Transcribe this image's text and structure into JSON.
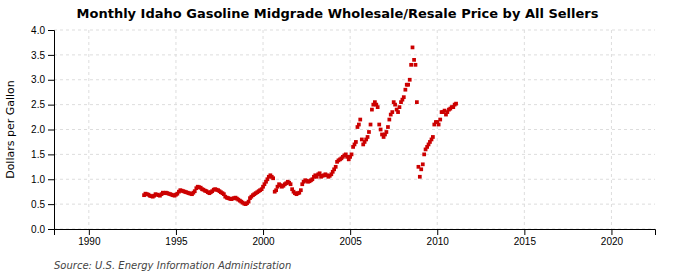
{
  "chart_data": {
    "type": "scatter",
    "title": "Monthly Idaho Gasoline Midgrade Wholesale/Resale Price by All Sellers",
    "ylabel": "Dollars per Gallon",
    "annotations": [
      "Source: U.S. Energy Information Administration"
    ],
    "xlim": [
      1988.0,
      2022.5
    ],
    "ylim": [
      0.0,
      4.0
    ],
    "xticks": [
      1990,
      1995,
      2000,
      2005,
      2010,
      2015,
      2020
    ],
    "yticks": [
      {
        "value": 0.0,
        "label": "0.0"
      },
      0.5,
      {
        "value": 1.0,
        "label": "1.0"
      },
      1.5,
      {
        "value": 2.0,
        "label": "2.0"
      },
      2.5,
      {
        "value": 3.0,
        "label": "3.0"
      },
      3.5,
      {
        "value": 4.0,
        "label": "4.0"
      }
    ],
    "grid": true,
    "color": "#cc0000",
    "marker": "square",
    "x": [
      1993.17,
      1993.25,
      1993.33,
      1993.42,
      1993.5,
      1993.58,
      1993.67,
      1993.75,
      1993.83,
      1993.92,
      1994.0,
      1994.08,
      1994.17,
      1994.25,
      1994.33,
      1994.42,
      1994.5,
      1994.58,
      1994.67,
      1994.75,
      1994.83,
      1994.92,
      1995.0,
      1995.08,
      1995.17,
      1995.25,
      1995.33,
      1995.42,
      1995.5,
      1995.58,
      1995.67,
      1995.75,
      1995.83,
      1995.92,
      1996.0,
      1996.08,
      1996.17,
      1996.25,
      1996.33,
      1996.42,
      1996.5,
      1996.58,
      1996.67,
      1996.75,
      1996.83,
      1996.92,
      1997.0,
      1997.08,
      1997.17,
      1997.25,
      1997.33,
      1997.42,
      1997.5,
      1997.58,
      1997.67,
      1997.75,
      1997.83,
      1997.92,
      1998.0,
      1998.08,
      1998.17,
      1998.25,
      1998.33,
      1998.42,
      1998.5,
      1998.58,
      1998.67,
      1998.75,
      1998.83,
      1998.92,
      1999.0,
      1999.08,
      1999.17,
      1999.25,
      1999.33,
      1999.42,
      1999.5,
      1999.58,
      1999.67,
      1999.75,
      1999.83,
      1999.92,
      2000.0,
      2000.08,
      2000.17,
      2000.25,
      2000.33,
      2000.42,
      2000.5,
      2000.58,
      2000.67,
      2000.75,
      2000.83,
      2000.92,
      2001.0,
      2001.08,
      2001.17,
      2001.25,
      2001.33,
      2001.42,
      2001.5,
      2001.58,
      2001.67,
      2001.75,
      2001.83,
      2001.92,
      2002.0,
      2002.08,
      2002.17,
      2002.25,
      2002.33,
      2002.42,
      2002.5,
      2002.58,
      2002.67,
      2002.75,
      2002.83,
      2002.92,
      2003.0,
      2003.08,
      2003.17,
      2003.25,
      2003.33,
      2003.42,
      2003.5,
      2003.58,
      2003.67,
      2003.75,
      2003.83,
      2003.92,
      2004.0,
      2004.08,
      2004.17,
      2004.25,
      2004.33,
      2004.42,
      2004.5,
      2004.58,
      2004.67,
      2004.75,
      2004.83,
      2004.92,
      2005.0,
      2005.08,
      2005.17,
      2005.25,
      2005.33,
      2005.42,
      2005.5,
      2005.58,
      2005.67,
      2005.75,
      2005.83,
      2005.92,
      2006.0,
      2006.08,
      2006.17,
      2006.25,
      2006.33,
      2006.42,
      2006.5,
      2006.58,
      2006.67,
      2006.75,
      2006.83,
      2006.92,
      2007.0,
      2007.08,
      2007.17,
      2007.25,
      2007.33,
      2007.42,
      2007.5,
      2007.58,
      2007.67,
      2007.75,
      2007.83,
      2007.92,
      2008.0,
      2008.08,
      2008.17,
      2008.25,
      2008.33,
      2008.42,
      2008.5,
      2008.58,
      2008.67,
      2008.75,
      2008.83,
      2008.92,
      2009.0,
      2009.08,
      2009.17,
      2009.25,
      2009.33,
      2009.42,
      2009.5,
      2009.58,
      2009.67,
      2009.75,
      2009.83,
      2009.92,
      2010.0,
      2010.08,
      2010.17,
      2010.25,
      2010.33,
      2010.42,
      2010.5,
      2010.58,
      2010.67,
      2010.75,
      2010.83,
      2010.92,
      2011.0,
      2011.08
    ],
    "values": [
      0.68,
      0.71,
      0.7,
      0.69,
      0.67,
      0.66,
      0.65,
      0.67,
      0.7,
      0.69,
      0.68,
      0.67,
      0.7,
      0.73,
      0.72,
      0.73,
      0.72,
      0.71,
      0.7,
      0.69,
      0.68,
      0.67,
      0.69,
      0.71,
      0.75,
      0.78,
      0.77,
      0.76,
      0.75,
      0.74,
      0.73,
      0.72,
      0.71,
      0.7,
      0.73,
      0.76,
      0.82,
      0.85,
      0.84,
      0.83,
      0.8,
      0.79,
      0.77,
      0.76,
      0.74,
      0.72,
      0.74,
      0.76,
      0.79,
      0.8,
      0.79,
      0.78,
      0.76,
      0.74,
      0.72,
      0.7,
      0.65,
      0.63,
      0.62,
      0.61,
      0.6,
      0.61,
      0.62,
      0.63,
      0.61,
      0.59,
      0.57,
      0.55,
      0.53,
      0.51,
      0.5,
      0.52,
      0.55,
      0.62,
      0.65,
      0.68,
      0.7,
      0.72,
      0.74,
      0.76,
      0.78,
      0.8,
      0.85,
      0.9,
      0.95,
      1.0,
      1.05,
      1.08,
      1.05,
      1.02,
      0.75,
      0.78,
      0.85,
      0.9,
      0.88,
      0.85,
      0.87,
      0.9,
      0.92,
      0.95,
      0.93,
      0.9,
      0.8,
      0.75,
      0.72,
      0.7,
      0.72,
      0.73,
      0.78,
      0.9,
      0.95,
      0.98,
      0.97,
      0.95,
      0.96,
      0.98,
      1.0,
      1.05,
      1.08,
      1.05,
      1.1,
      1.12,
      1.05,
      1.07,
      1.08,
      1.1,
      1.08,
      1.05,
      1.07,
      1.1,
      1.15,
      1.2,
      1.25,
      1.35,
      1.38,
      1.4,
      1.42,
      1.45,
      1.48,
      1.5,
      1.45,
      1.4,
      1.45,
      1.5,
      1.65,
      1.7,
      1.75,
      2.05,
      2.1,
      2.2,
      1.8,
      1.7,
      1.75,
      1.8,
      1.85,
      1.95,
      2.1,
      2.4,
      2.5,
      2.55,
      2.5,
      2.45,
      2.1,
      2.0,
      1.9,
      1.85,
      1.9,
      1.95,
      2.05,
      2.2,
      2.3,
      2.35,
      2.55,
      2.5,
      2.4,
      2.35,
      2.45,
      2.55,
      2.6,
      2.65,
      2.8,
      2.9,
      2.9,
      3.0,
      3.3,
      3.65,
      3.4,
      3.3,
      2.55,
      1.25,
      1.05,
      1.2,
      1.3,
      1.5,
      1.6,
      1.65,
      1.7,
      1.75,
      1.8,
      1.85,
      2.1,
      2.15,
      2.15,
      2.1,
      2.2,
      2.35,
      2.35,
      2.38,
      2.3,
      2.35,
      2.4,
      2.42,
      2.45,
      2.45,
      2.5,
      2.52
    ]
  }
}
